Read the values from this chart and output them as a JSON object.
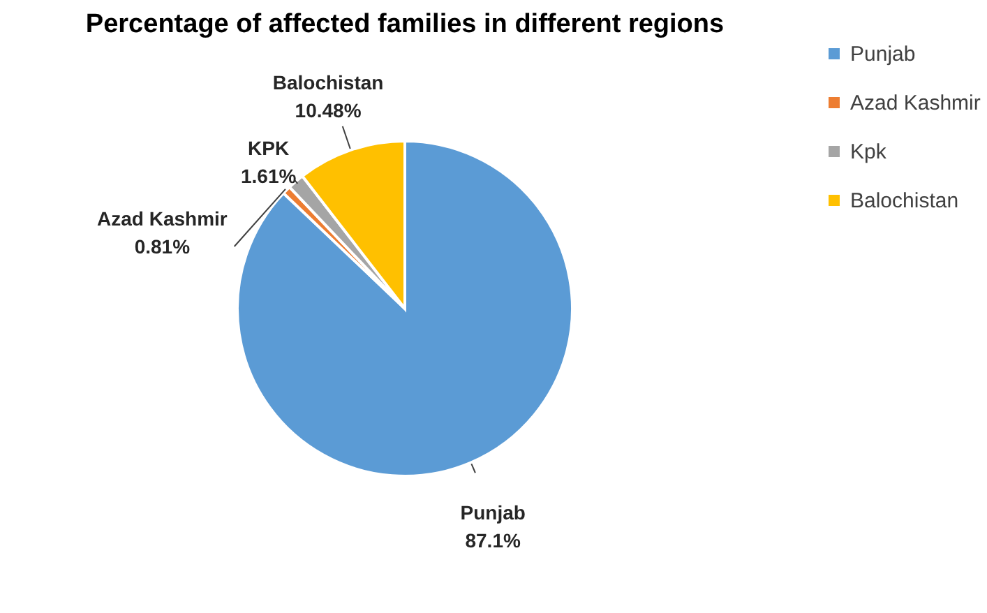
{
  "chart_data": {
    "type": "pie",
    "title": "Percentage of affected families in different regions",
    "categories": [
      "Punjab",
      "Azad Kashmir",
      "Kpk",
      "Balochistan"
    ],
    "values": [
      87.1,
      0.81,
      1.61,
      10.48
    ],
    "colors": [
      "#5b9bd5",
      "#ed7d31",
      "#a5a5a5",
      "#ffc000"
    ],
    "value_labels": [
      "Punjab 87.1%",
      "Azad Kashmir 0.81%",
      "KPK 1.61%",
      "Balochistan 10.48%"
    ],
    "legend": "right"
  }
}
